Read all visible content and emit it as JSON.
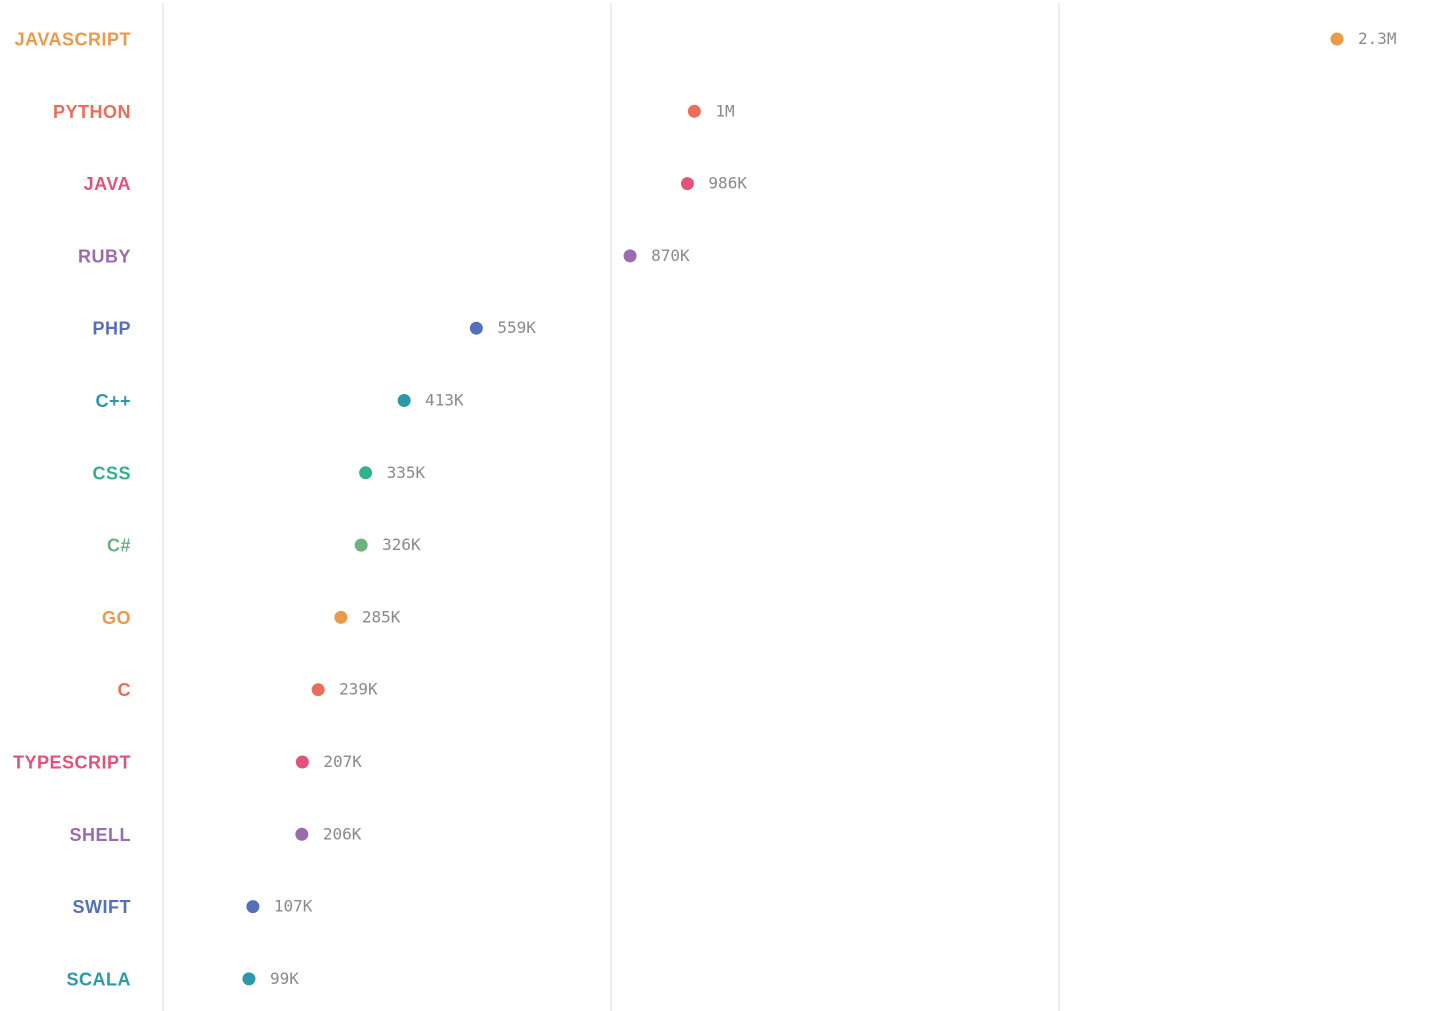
{
  "chart_data": {
    "type": "lollipop",
    "title": "",
    "xlabel": "",
    "ylabel": "",
    "xlim": [
      0,
      2300000
    ],
    "grid": "vertical",
    "categories": [
      "JAVASCRIPT",
      "PYTHON",
      "JAVA",
      "RUBY",
      "PHP",
      "C++",
      "CSS",
      "C#",
      "GO",
      "C",
      "TYPESCRIPT",
      "SHELL",
      "SWIFT",
      "SCALA"
    ],
    "values": [
      2300000,
      1000000,
      986000,
      870000,
      559000,
      413000,
      335000,
      326000,
      285000,
      239000,
      207000,
      206000,
      107000,
      99000
    ],
    "value_labels": [
      "2.3M",
      "1M",
      "986K",
      "870K",
      "559K",
      "413K",
      "335K",
      "326K",
      "285K",
      "239K",
      "207K",
      "206K",
      "107K",
      "99K"
    ],
    "colors": [
      "#eb9a4a",
      "#ea6f5a",
      "#e4527a",
      "#9a6bb0",
      "#5470b8",
      "#2a9aa8",
      "#33b08f",
      "#6bb27f",
      "#eb9a4a",
      "#ea6f5a",
      "#e4527a",
      "#9a6bb0",
      "#5470b8",
      "#2a9aa8"
    ]
  }
}
